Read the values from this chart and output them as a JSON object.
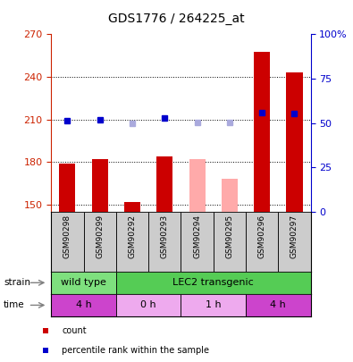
{
  "title": "GDS1776 / 264225_at",
  "samples": [
    "GSM90298",
    "GSM90299",
    "GSM90292",
    "GSM90293",
    "GSM90294",
    "GSM90295",
    "GSM90296",
    "GSM90297"
  ],
  "count_values": [
    179,
    182,
    152,
    184,
    null,
    null,
    258,
    243
  ],
  "count_absent_values": [
    null,
    null,
    null,
    null,
    182,
    168,
    null,
    null
  ],
  "rank_values": [
    209,
    210,
    null,
    211,
    null,
    null,
    215,
    214
  ],
  "rank_absent_values": [
    null,
    null,
    207,
    null,
    208,
    208,
    null,
    null
  ],
  "ylim_left": [
    145,
    270
  ],
  "ylim_right": [
    0,
    100
  ],
  "yticks_left": [
    150,
    180,
    210,
    240,
    270
  ],
  "yticks_right": [
    0,
    25,
    50,
    75,
    100
  ],
  "ytick_labels_right": [
    "0",
    "25",
    "50",
    "75",
    "100%"
  ],
  "strain_groups": [
    {
      "label": "wild type",
      "start": 0,
      "end": 2,
      "color": "#7ee07e"
    },
    {
      "label": "LEC2 transgenic",
      "start": 2,
      "end": 8,
      "color": "#55cc55"
    }
  ],
  "time_groups": [
    {
      "label": "4 h",
      "start": 0,
      "end": 2,
      "color": "#cc44cc"
    },
    {
      "label": "0 h",
      "start": 2,
      "end": 4,
      "color": "#eeaaee"
    },
    {
      "label": "1 h",
      "start": 4,
      "end": 6,
      "color": "#eeaaee"
    },
    {
      "label": "4 h",
      "start": 6,
      "end": 8,
      "color": "#cc44cc"
    }
  ],
  "sample_bg_color": "#cccccc",
  "bar_color_present": "#cc0000",
  "bar_color_absent": "#ffaaaa",
  "rank_color_present": "#0000cc",
  "rank_color_absent": "#aaaadd",
  "bar_width": 0.5,
  "bg_color": "white",
  "left_label_color": "#cc2200",
  "right_label_color": "#0000cc"
}
